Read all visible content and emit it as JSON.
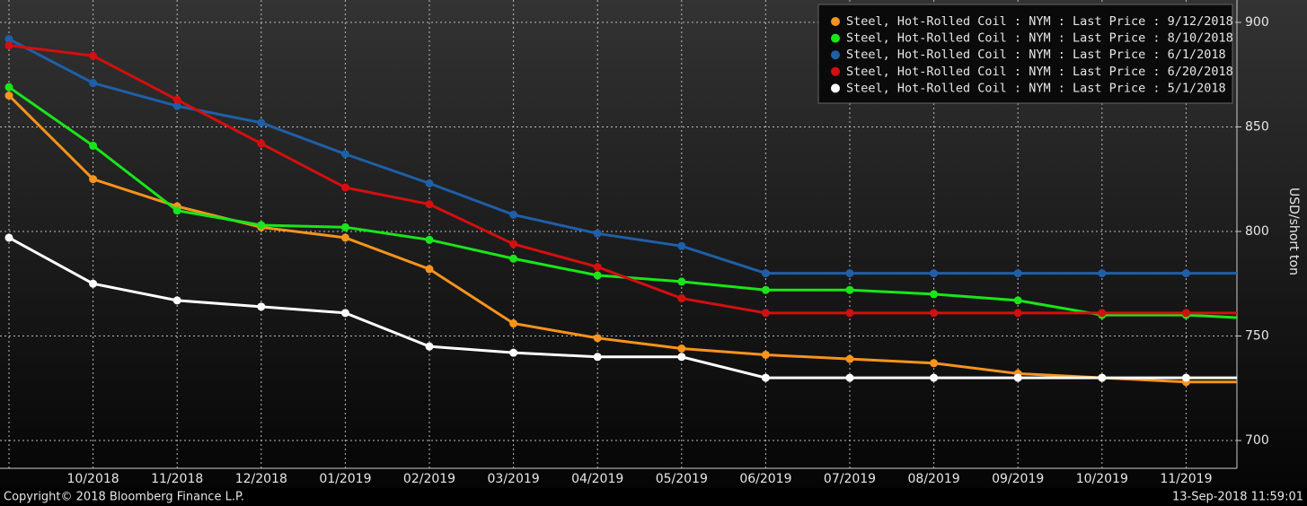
{
  "chart_data": {
    "type": "line",
    "y_label": "USD/short ton",
    "footer_left": "Copyright© 2018 Bloomberg Finance L.P.",
    "footer_right": "13-Sep-2018 11:59:01",
    "categories": [
      null,
      "10/2018",
      "11/2018",
      "12/2018",
      "01/2019",
      "02/2019",
      "03/2019",
      "04/2019",
      "05/2019",
      "06/2019",
      "07/2019",
      "08/2019",
      "09/2019",
      "10/2019",
      "11/2019",
      null
    ],
    "series": [
      {
        "name": "Steel, Hot-Rolled Coil : NYM : Last Price : 9/12/2018",
        "color": "#f7941d",
        "values": [
          865,
          825,
          812,
          802,
          797,
          782,
          756,
          749,
          744,
          741,
          739,
          737,
          732,
          730,
          728,
          728
        ]
      },
      {
        "name": "Steel, Hot-Rolled Coil : NYM : Last Price : 8/10/2018",
        "color": "#19e619",
        "values": [
          869,
          841,
          810,
          803,
          802,
          796,
          787,
          779,
          776,
          772,
          772,
          770,
          767,
          760,
          760,
          758
        ]
      },
      {
        "name": "Steel, Hot-Rolled Coil : NYM : Last Price : 6/1/2018",
        "color": "#1f5fa8",
        "values": [
          892,
          871,
          860,
          852,
          837,
          823,
          808,
          799,
          793,
          780,
          780,
          780,
          780,
          780,
          780,
          780
        ]
      },
      {
        "name": "Steel, Hot-Rolled Coil : NYM : Last Price : 6/20/2018",
        "color": "#d40f0f",
        "values": [
          889,
          884,
          863,
          842,
          821,
          813,
          794,
          783,
          768,
          761,
          761,
          761,
          761,
          761,
          761,
          761
        ]
      },
      {
        "name": "Steel, Hot-Rolled Coil : NYM : Last Price : 5/1/2018",
        "color": "#ffffff",
        "values": [
          797,
          775,
          767,
          764,
          761,
          745,
          742,
          740,
          740,
          730,
          730,
          730,
          730,
          730,
          730,
          730
        ]
      }
    ],
    "ylim": [
      686.7,
      910.7
    ],
    "yticks": [
      700,
      750,
      800,
      850,
      900
    ],
    "grid": true,
    "legend": "top-right"
  }
}
